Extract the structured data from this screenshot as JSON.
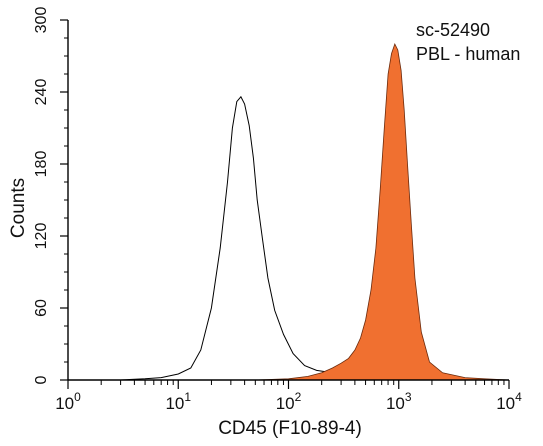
{
  "chart_data": {
    "type": "area",
    "title": "",
    "annotations": [
      "sc-52490",
      "PBL - human"
    ],
    "xlabel": "CD45 (F10-89-4)",
    "ylabel": "Counts",
    "x_scale": "log",
    "xlim": [
      1,
      10000
    ],
    "ylim": [
      0,
      300
    ],
    "x_ticks": [
      {
        "value": 1,
        "base": "10",
        "exp": "0"
      },
      {
        "value": 10,
        "base": "10",
        "exp": "1"
      },
      {
        "value": 100,
        "base": "10",
        "exp": "2"
      },
      {
        "value": 1000,
        "base": "10",
        "exp": "3"
      },
      {
        "value": 10000,
        "base": "10",
        "exp": "4"
      }
    ],
    "y_ticks": [
      0,
      60,
      120,
      180,
      240,
      300
    ],
    "grid": false,
    "legend": "none",
    "series": [
      {
        "style": "outline",
        "color": "#000000",
        "x": [
          1,
          3,
          5,
          7,
          10,
          13,
          16,
          20,
          24,
          28,
          31,
          34,
          37,
          40,
          44,
          48,
          52,
          58,
          65,
          75,
          90,
          110,
          140,
          180,
          250,
          400,
          1000,
          10000
        ],
        "y": [
          0,
          0,
          1,
          2,
          5,
          10,
          25,
          60,
          110,
          165,
          210,
          232,
          236,
          230,
          212,
          185,
          150,
          118,
          85,
          58,
          38,
          22,
          12,
          8,
          6,
          4,
          1,
          0
        ]
      },
      {
        "style": "filled",
        "color": "#f07030",
        "x": [
          1,
          50,
          100,
          150,
          200,
          250,
          300,
          350,
          400,
          450,
          500,
          560,
          620,
          680,
          740,
          800,
          860,
          920,
          980,
          1050,
          1120,
          1200,
          1300,
          1400,
          1600,
          1900,
          2500,
          4000,
          6000,
          10000
        ],
        "y": [
          0,
          0,
          1,
          3,
          6,
          10,
          14,
          18,
          25,
          35,
          50,
          75,
          110,
          160,
          210,
          255,
          272,
          280,
          275,
          258,
          225,
          180,
          130,
          85,
          40,
          15,
          6,
          2,
          1,
          0
        ]
      }
    ]
  }
}
